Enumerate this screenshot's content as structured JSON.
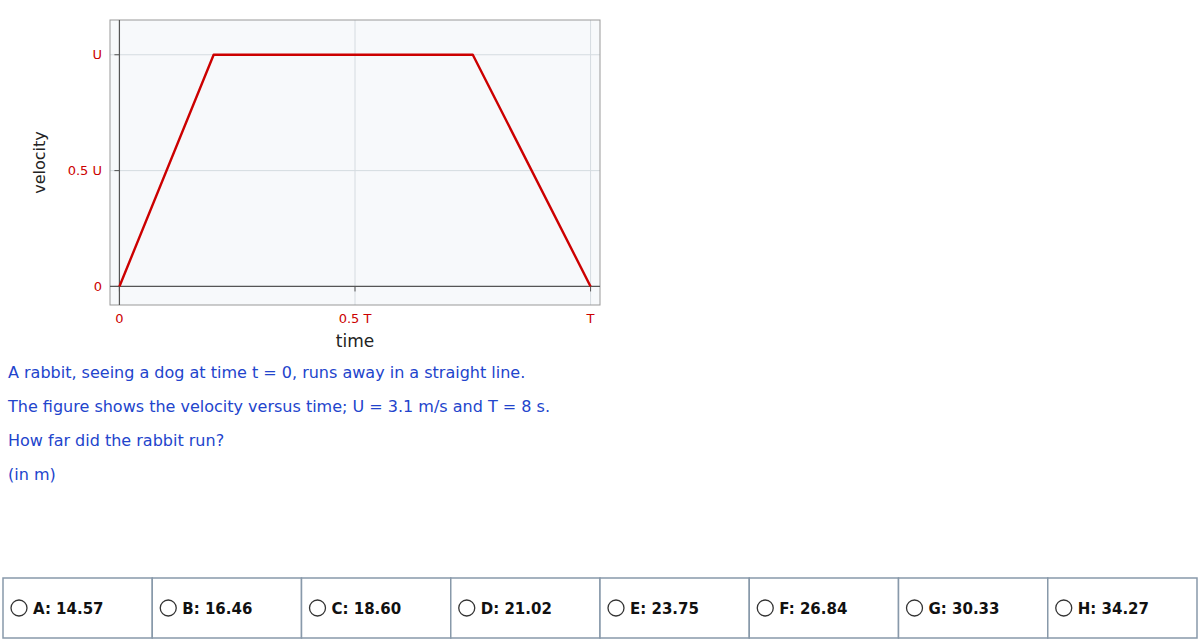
{
  "chart_data": {
    "type": "line",
    "x": [
      0.0,
      0.0,
      0.2,
      0.5,
      0.75,
      1.0
    ],
    "series": [
      {
        "color": "#cc0000",
        "values": [
          0.0,
          0.0,
          1.0,
          1.0,
          1.0,
          0.0
        ]
      }
    ],
    "xlabel": "time",
    "ylabel": "velocity",
    "xlim": [
      -0.02,
      1.02
    ],
    "ylim": [
      -0.08,
      1.15
    ],
    "xticks": [
      0,
      {
        "value": 0.5,
        "label": "0.5 T"
      },
      {
        "value": 1.0,
        "label": "T"
      }
    ],
    "yticks": [
      0,
      {
        "value": 0.5,
        "label": "0.5 U"
      },
      {
        "value": 1.0,
        "label": "U"
      }
    ],
    "grid": true,
    "annotations": [
      "A rabbit, seeing a dog at time t = 0, runs away in a straight line.",
      "The figure shows the velocity versus time; U = 3.1 m/s and T = 8 s.",
      "How far did the rabbit run?",
      "(in m)"
    ],
    "answers": [
      "A: 14.57",
      "B: 16.46",
      "C: 18.60",
      "D: 21.02",
      "E: 23.75",
      "F: 26.84",
      "G: 30.33",
      "H: 34.27"
    ]
  }
}
